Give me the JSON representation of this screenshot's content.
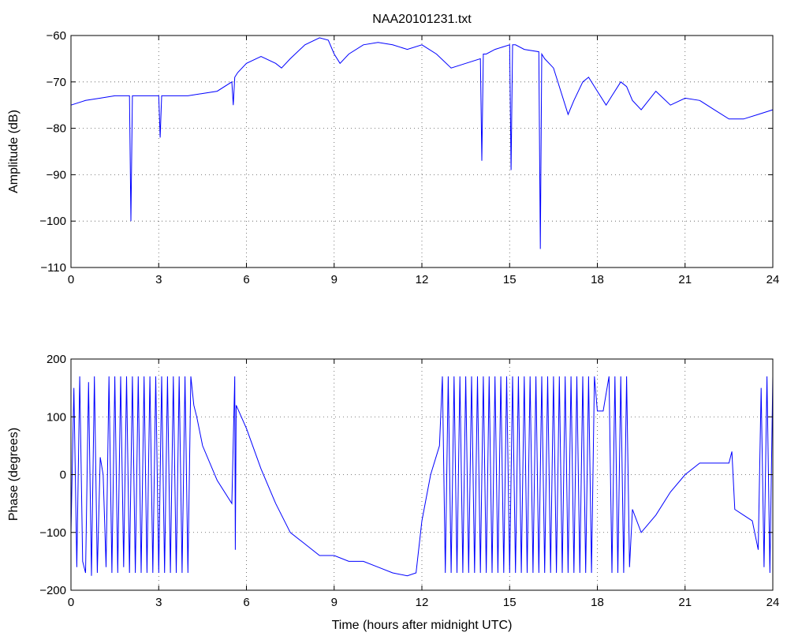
{
  "chart_data": [
    {
      "type": "line",
      "title": "NAA20101231.txt",
      "xlabel": "",
      "ylabel": "Amplitude (dB)",
      "xlim": [
        0,
        24
      ],
      "ylim": [
        -110,
        -60
      ],
      "xticks": [
        0,
        3,
        6,
        9,
        12,
        15,
        18,
        21,
        24
      ],
      "yticks": [
        -60,
        -70,
        -80,
        -90,
        -100,
        -110
      ],
      "grid": true,
      "series": [
        {
          "color": "#0000ff",
          "x": [
            0,
            0.5,
            1,
            1.5,
            2,
            2.05,
            2.1,
            2.2,
            2.5,
            3,
            3.05,
            3.1,
            3.3,
            3.5,
            4,
            4.5,
            5,
            5.5,
            5.55,
            5.6,
            5.7,
            6,
            6.5,
            7,
            7.2,
            7.5,
            8,
            8.5,
            8.8,
            9,
            9.2,
            9.5,
            10,
            10.5,
            11,
            11.5,
            12,
            12.5,
            13,
            13.5,
            14,
            14.05,
            14.1,
            14.2,
            14.5,
            15,
            15.05,
            15.1,
            15.2,
            15.5,
            16,
            16.05,
            16.1,
            16.2,
            16.5,
            17,
            17.2,
            17.5,
            17.7,
            18,
            18.3,
            18.5,
            18.8,
            19,
            19.2,
            19.5,
            20,
            20.5,
            21,
            21.5,
            22,
            22.5,
            23,
            23.5,
            24
          ],
          "values": [
            -75,
            -74,
            -73.5,
            -73,
            -73,
            -100,
            -73,
            -73,
            -73,
            -73,
            -82,
            -73,
            -73,
            -73,
            -73,
            -72.5,
            -72,
            -70,
            -75,
            -69,
            -68,
            -66,
            -64.5,
            -66,
            -67,
            -65,
            -62,
            -60.5,
            -61,
            -64,
            -66,
            -64,
            -62,
            -61.5,
            -62,
            -63,
            -62,
            -64,
            -67,
            -66,
            -65,
            -87,
            -64,
            -64,
            -63,
            -62,
            -89,
            -62,
            -62,
            -63,
            -63.5,
            -106,
            -64,
            -65,
            -67,
            -77,
            -74,
            -70,
            -69,
            -72,
            -75,
            -73,
            -70,
            -71,
            -74,
            -76,
            -72,
            -75,
            -73.5,
            -74,
            -76,
            -78,
            -78,
            -77,
            -76
          ]
        }
      ]
    },
    {
      "type": "line",
      "title": "",
      "xlabel": "Time (hours after midnight UTC)",
      "ylabel": "Phase (degrees)",
      "xlim": [
        0,
        24
      ],
      "ylim": [
        -200,
        200
      ],
      "xticks": [
        0,
        3,
        6,
        9,
        12,
        15,
        18,
        21,
        24
      ],
      "yticks": [
        200,
        100,
        0,
        -100,
        -200
      ],
      "grid": true,
      "series": [
        {
          "color": "#0000ff",
          "x": [
            0,
            0.1,
            0.2,
            0.3,
            0.4,
            0.5,
            0.6,
            0.7,
            0.8,
            0.9,
            1.0,
            1.1,
            1.2,
            1.3,
            1.4,
            1.5,
            1.6,
            1.7,
            1.8,
            1.9,
            2.0,
            2.1,
            2.2,
            2.3,
            2.4,
            2.5,
            2.6,
            2.7,
            2.8,
            2.9,
            3.0,
            3.1,
            3.2,
            3.3,
            3.4,
            3.5,
            3.6,
            3.7,
            3.8,
            3.9,
            4.0,
            4.1,
            4.2,
            4.3,
            4.5,
            5.0,
            5.5,
            5.6,
            5.62,
            5.65,
            6.0,
            6.5,
            7.0,
            7.5,
            8.0,
            8.5,
            9.0,
            9.5,
            10.0,
            10.5,
            11.0,
            11.5,
            11.8,
            12.0,
            12.3,
            12.6,
            12.7,
            12.8,
            12.9,
            13.0,
            13.1,
            13.2,
            13.3,
            13.4,
            13.5,
            13.6,
            13.7,
            13.8,
            13.9,
            14.0,
            14.1,
            14.2,
            14.3,
            14.4,
            14.5,
            14.6,
            14.7,
            14.8,
            14.9,
            15.0,
            15.1,
            15.2,
            15.3,
            15.4,
            15.5,
            15.6,
            15.7,
            15.8,
            15.9,
            16.0,
            16.1,
            16.2,
            16.3,
            16.4,
            16.5,
            16.6,
            16.7,
            16.8,
            16.9,
            17.0,
            17.1,
            17.2,
            17.3,
            17.4,
            17.5,
            17.6,
            17.7,
            17.8,
            17.9,
            18.0,
            18.2,
            18.4,
            18.5,
            18.6,
            18.7,
            18.8,
            18.9,
            19.0,
            19.1,
            19.2,
            19.5,
            20.0,
            20.5,
            21.0,
            21.5,
            22.0,
            22.5,
            22.6,
            22.7,
            23.0,
            23.3,
            23.5,
            23.6,
            23.7,
            23.8,
            23.9,
            24.0
          ],
          "values": [
            -100,
            150,
            -160,
            170,
            -150,
            -170,
            160,
            -175,
            170,
            -170,
            30,
            0,
            -160,
            170,
            -170,
            170,
            -170,
            170,
            -160,
            170,
            -170,
            170,
            -170,
            170,
            -170,
            170,
            -170,
            170,
            -170,
            170,
            -170,
            170,
            -170,
            170,
            -170,
            170,
            -170,
            170,
            -170,
            170,
            -170,
            170,
            120,
            100,
            50,
            -10,
            -50,
            170,
            -130,
            120,
            80,
            10,
            -50,
            -100,
            -120,
            -140,
            -140,
            -150,
            -150,
            -160,
            -170,
            -175,
            -170,
            -80,
            0,
            50,
            170,
            -170,
            170,
            -170,
            170,
            -170,
            170,
            -170,
            170,
            -170,
            170,
            -170,
            170,
            -170,
            170,
            -170,
            170,
            -170,
            170,
            -170,
            170,
            -170,
            170,
            -170,
            170,
            -170,
            170,
            -170,
            170,
            -170,
            170,
            -170,
            170,
            -170,
            170,
            -170,
            170,
            -170,
            170,
            -170,
            170,
            -170,
            170,
            -170,
            170,
            -170,
            170,
            -170,
            170,
            -170,
            170,
            -170,
            170,
            110,
            110,
            170,
            -170,
            170,
            -170,
            170,
            -170,
            170,
            -160,
            -60,
            -100,
            -70,
            -30,
            0,
            20,
            20,
            20,
            40,
            -60,
            -70,
            -80,
            -130,
            150,
            -160,
            170,
            -170,
            170
          ]
        }
      ]
    }
  ]
}
